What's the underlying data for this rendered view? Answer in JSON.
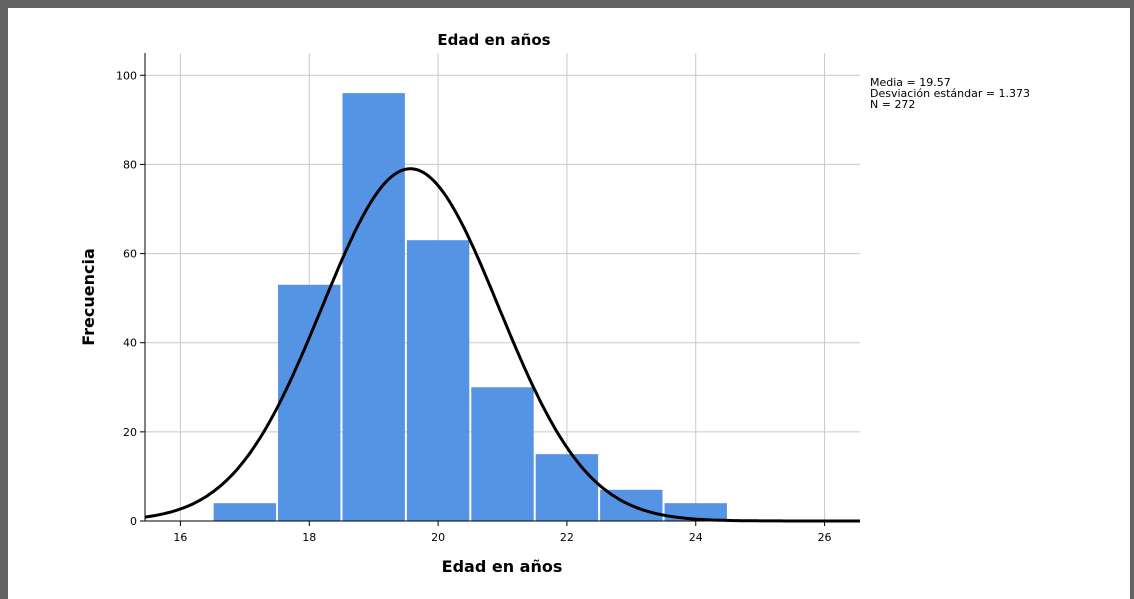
{
  "chart_data": {
    "type": "bar",
    "title": "Edad en años",
    "xlabel": "Edad en años",
    "ylabel": "Frecuencia",
    "xlim": [
      15.45,
      26.55
    ],
    "ylim": [
      0,
      105
    ],
    "xticks": [
      16,
      18,
      20,
      22,
      24,
      26
    ],
    "yticks": [
      0,
      20,
      40,
      60,
      80,
      100
    ],
    "bins": [
      {
        "start": 16.5,
        "end": 17.5,
        "value": 4
      },
      {
        "start": 17.5,
        "end": 18.5,
        "value": 53
      },
      {
        "start": 18.5,
        "end": 19.5,
        "value": 96
      },
      {
        "start": 19.5,
        "end": 20.5,
        "value": 63
      },
      {
        "start": 20.5,
        "end": 21.5,
        "value": 30
      },
      {
        "start": 21.5,
        "end": 22.5,
        "value": 15
      },
      {
        "start": 22.5,
        "end": 23.5,
        "value": 7
      },
      {
        "start": 23.5,
        "end": 24.5,
        "value": 4
      }
    ],
    "normal_curve": {
      "mean": 19.57,
      "sd": 1.373,
      "n": 272,
      "bin_width": 1
    },
    "grid": true,
    "bar_color": "#5594e4",
    "curve_color": "#000000",
    "stats_lines": [
      "Media = 19.57",
      "Desviación estándar = 1.373",
      "N = 272"
    ]
  }
}
